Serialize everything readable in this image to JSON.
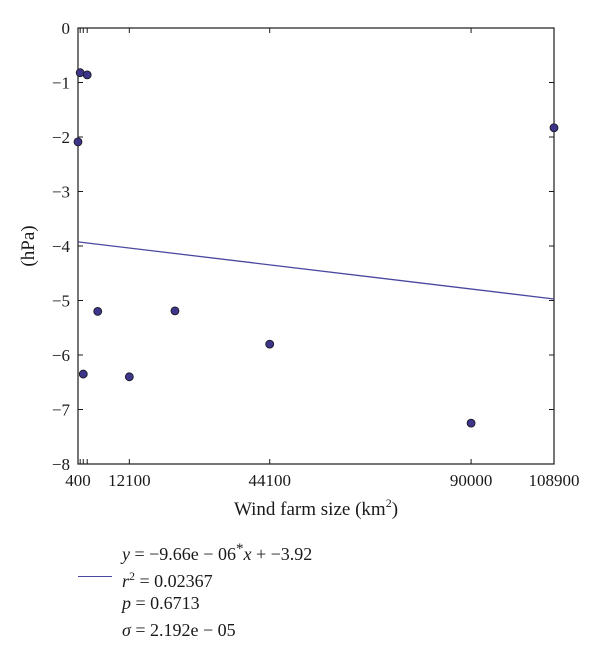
{
  "chart_data": {
    "type": "scatter",
    "title": "",
    "xlabel": "Wind farm size (km",
    "xlabel_sup": "2",
    "xlabel_close": ")",
    "ylabel": "(hPa)",
    "xlim": [
      400,
      108900
    ],
    "ylim": [
      -8,
      0
    ],
    "xticks": [
      400,
      12100,
      44100,
      90000,
      108900
    ],
    "xtick_labels": [
      "400",
      "12100",
      "44100",
      "90000",
      "108900"
    ],
    "yticks": [
      0,
      -1,
      -2,
      -3,
      -4,
      -5,
      -6,
      -7,
      -8
    ],
    "ytick_labels": [
      "0",
      "−1",
      "−2",
      "−3",
      "−4",
      "−5",
      "−6",
      "−7",
      "−8"
    ],
    "points": [
      {
        "x": 900,
        "y": -0.82
      },
      {
        "x": 2500,
        "y": -0.86
      },
      {
        "x": 400,
        "y": -2.09
      },
      {
        "x": 1600,
        "y": -6.35
      },
      {
        "x": 4900,
        "y": -5.2
      },
      {
        "x": 12100,
        "y": -6.4
      },
      {
        "x": 22500,
        "y": -5.19
      },
      {
        "x": 44100,
        "y": -5.8
      },
      {
        "x": 90000,
        "y": -7.25
      },
      {
        "x": 108900,
        "y": -1.83
      }
    ],
    "fit": {
      "slope": -9.66e-06,
      "intercept": -3.92
    },
    "grid": false,
    "colors": {
      "marker_fill": "#3d3589",
      "marker_edge": "#141414",
      "fit_line": "#4b47a0"
    }
  },
  "stats": {
    "equation_y": "y",
    "equation_mid": " = −9.66e − 06",
    "equation_star": "*",
    "equation_x": "x",
    "equation_end": " + −3.92",
    "r_symbol": "r",
    "r_exp": "2",
    "r_value": " = 0.02367",
    "p_symbol": "p",
    "p_value": " = 0.6713",
    "sigma_symbol": "σ",
    "sigma_value": " = 2.192e − 05"
  }
}
